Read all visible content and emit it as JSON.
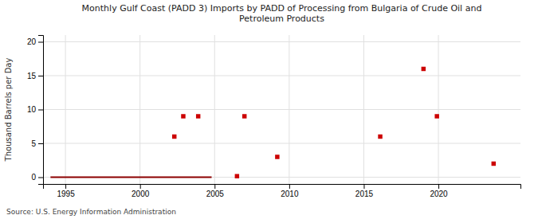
{
  "chart_data": {
    "type": "scatter",
    "title": "Monthly Gulf Coast (PADD 3) Imports by PADD of Processing from Bulgaria of Crude Oil and\nPetroleum Products",
    "ylabel": "Thousand Barrels per Day",
    "source": "Source: U.S. Energy Information Administration",
    "xlim": [
      1993.5,
      2025.5
    ],
    "ylim": [
      -1,
      21
    ],
    "xticks": [
      1995,
      2000,
      2005,
      2010,
      2015,
      2020
    ],
    "yticks": [
      0,
      5,
      10,
      15,
      20
    ],
    "grid": true,
    "series": [
      {
        "type": "line",
        "line_style": "solid",
        "color": "#8b0000",
        "x": [
          1994.0,
          2004.8
        ],
        "values": [
          0,
          0
        ]
      },
      {
        "type": "scatter",
        "marker": "square",
        "color": "#cc0000",
        "x": [
          2002.3,
          2002.9,
          2003.9,
          2007.0,
          2009.2,
          2016.1,
          2019.0,
          2019.9,
          2023.7
        ],
        "values": [
          6,
          9,
          9,
          9,
          3,
          6,
          16,
          9,
          2
        ]
      },
      {
        "type": "scatter",
        "marker": "square",
        "color": "#cc0000",
        "x": [
          2006.5
        ],
        "values": [
          0.15
        ]
      }
    ]
  }
}
